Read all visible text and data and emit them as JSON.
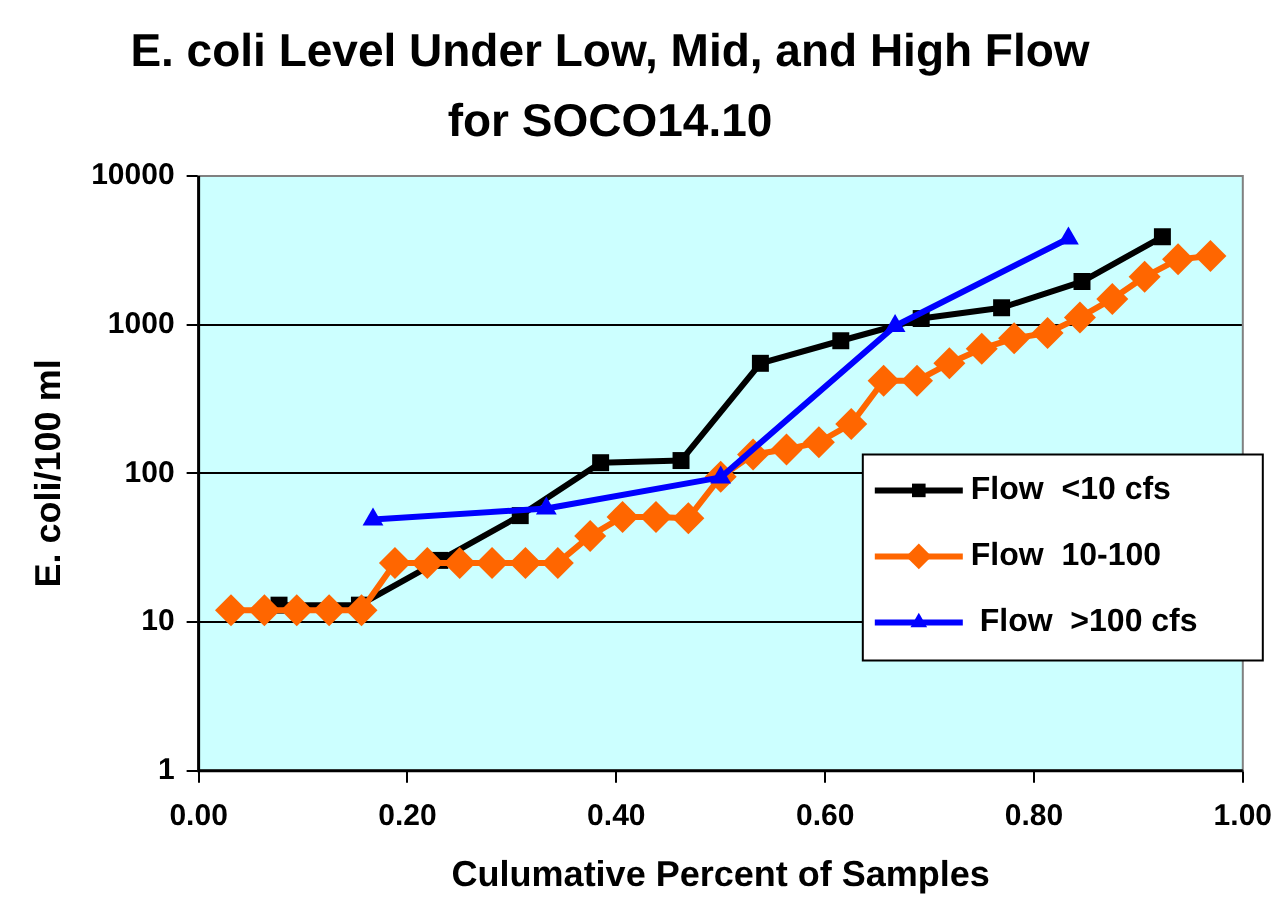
{
  "chart_data": {
    "type": "line",
    "title": "E. coli Level Under Low, Mid, and High Flow for SOCO14.10",
    "xlabel": "Culumative Percent of Samples",
    "ylabel": "E. coli/100 ml",
    "log": "y",
    "grid": "y",
    "legend": "right",
    "line_style": "solid",
    "xlim": [
      0,
      1
    ],
    "xticks": [
      {
        "value": 0,
        "label": "0.00"
      },
      {
        "value": 0.2,
        "label": "0.20"
      },
      {
        "value": 0.4,
        "label": "0.40"
      },
      {
        "value": 0.6,
        "label": "0.60"
      },
      {
        "value": 0.8,
        "label": "0.80"
      },
      {
        "value": 1,
        "label": "1.00"
      }
    ],
    "ylim": [
      1,
      10000
    ],
    "yticks": [
      1,
      10,
      100,
      1000,
      10000
    ],
    "series": [
      {
        "name": "Flow  <10 cfs",
        "color": "#000000",
        "marker": "square",
        "x": [
          0.077,
          0.154,
          0.231,
          0.308,
          0.385,
          0.462,
          0.538,
          0.615,
          0.692,
          0.769,
          0.846,
          0.923
        ],
        "values": [
          13,
          13,
          26,
          52,
          118,
          122,
          550,
          780,
          1100,
          1300,
          1950,
          3900
        ]
      },
      {
        "name": "Flow  10-100",
        "color": "#ff6600",
        "marker": "diamond",
        "x": [
          0.031,
          0.063,
          0.094,
          0.125,
          0.156,
          0.188,
          0.219,
          0.25,
          0.281,
          0.313,
          0.344,
          0.375,
          0.406,
          0.438,
          0.469,
          0.5,
          0.531,
          0.563,
          0.594,
          0.625,
          0.656,
          0.688,
          0.719,
          0.75,
          0.781,
          0.813,
          0.844,
          0.875,
          0.906,
          0.938,
          0.969
        ],
        "values": [
          12,
          12,
          12,
          12,
          12,
          25,
          25,
          25,
          25,
          25,
          25,
          38,
          51,
          51,
          50,
          95,
          134,
          145,
          162,
          215,
          420,
          420,
          550,
          690,
          810,
          880,
          1120,
          1490,
          2100,
          2750,
          2900
        ]
      },
      {
        "name": " Flow  >100 cfs",
        "color": "#0000ff",
        "marker": "triangle",
        "x": [
          0.167,
          0.333,
          0.5,
          0.667,
          0.833
        ],
        "values": [
          49,
          58,
          94,
          980,
          3800
        ]
      }
    ]
  }
}
